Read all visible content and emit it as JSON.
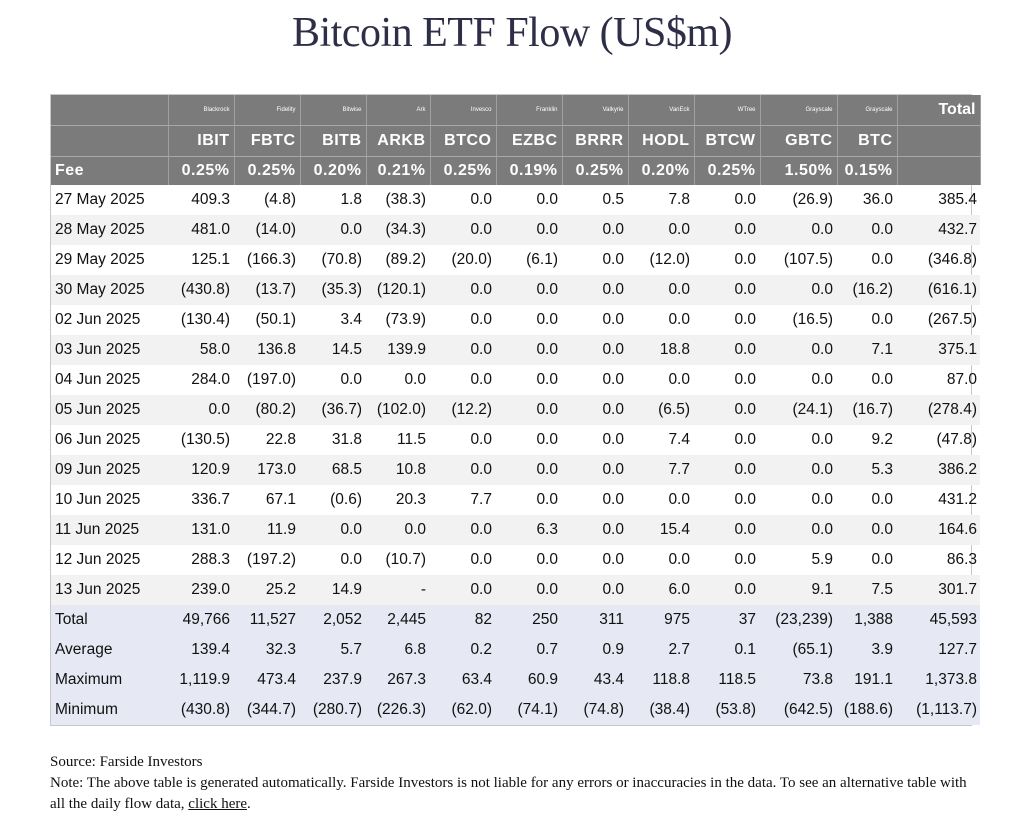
{
  "title": "Bitcoin ETF Flow (US$m)",
  "table": {
    "issuers": [
      "Blackrock",
      "Fidelity",
      "Bitwise",
      "Ark",
      "Invesco",
      "Franklin",
      "Valkyrie",
      "VanEck",
      "WTree",
      "Grayscale",
      "Grayscale"
    ],
    "total_header": "Total",
    "tickers": [
      "IBIT",
      "FBTC",
      "BITB",
      "ARKB",
      "BTCO",
      "EZBC",
      "BRRR",
      "HODL",
      "BTCW",
      "GBTC",
      "BTC"
    ],
    "fee_label": "Fee",
    "fees": [
      "0.25%",
      "0.25%",
      "0.20%",
      "0.21%",
      "0.25%",
      "0.19%",
      "0.25%",
      "0.20%",
      "0.25%",
      "1.50%",
      "0.15%"
    ],
    "rows": [
      {
        "date": "27 May 2025",
        "values": [
          "409.3",
          "(4.8)",
          "1.8",
          "(38.3)",
          "0.0",
          "0.0",
          "0.5",
          "7.8",
          "0.0",
          "(26.9)",
          "36.0"
        ],
        "total": "385.4"
      },
      {
        "date": "28 May 2025",
        "values": [
          "481.0",
          "(14.0)",
          "0.0",
          "(34.3)",
          "0.0",
          "0.0",
          "0.0",
          "0.0",
          "0.0",
          "0.0",
          "0.0"
        ],
        "total": "432.7"
      },
      {
        "date": "29 May 2025",
        "values": [
          "125.1",
          "(166.3)",
          "(70.8)",
          "(89.2)",
          "(20.0)",
          "(6.1)",
          "0.0",
          "(12.0)",
          "0.0",
          "(107.5)",
          "0.0"
        ],
        "total": "(346.8)"
      },
      {
        "date": "30 May 2025",
        "values": [
          "(430.8)",
          "(13.7)",
          "(35.3)",
          "(120.1)",
          "0.0",
          "0.0",
          "0.0",
          "0.0",
          "0.0",
          "0.0",
          "(16.2)"
        ],
        "total": "(616.1)"
      },
      {
        "date": "02 Jun 2025",
        "values": [
          "(130.4)",
          "(50.1)",
          "3.4",
          "(73.9)",
          "0.0",
          "0.0",
          "0.0",
          "0.0",
          "0.0",
          "(16.5)",
          "0.0"
        ],
        "total": "(267.5)"
      },
      {
        "date": "03 Jun 2025",
        "values": [
          "58.0",
          "136.8",
          "14.5",
          "139.9",
          "0.0",
          "0.0",
          "0.0",
          "18.8",
          "0.0",
          "0.0",
          "7.1"
        ],
        "total": "375.1"
      },
      {
        "date": "04 Jun 2025",
        "values": [
          "284.0",
          "(197.0)",
          "0.0",
          "0.0",
          "0.0",
          "0.0",
          "0.0",
          "0.0",
          "0.0",
          "0.0",
          "0.0"
        ],
        "total": "87.0"
      },
      {
        "date": "05 Jun 2025",
        "values": [
          "0.0",
          "(80.2)",
          "(36.7)",
          "(102.0)",
          "(12.2)",
          "0.0",
          "0.0",
          "(6.5)",
          "0.0",
          "(24.1)",
          "(16.7)"
        ],
        "total": "(278.4)"
      },
      {
        "date": "06 Jun 2025",
        "values": [
          "(130.5)",
          "22.8",
          "31.8",
          "11.5",
          "0.0",
          "0.0",
          "0.0",
          "7.4",
          "0.0",
          "0.0",
          "9.2"
        ],
        "total": "(47.8)"
      },
      {
        "date": "09 Jun 2025",
        "values": [
          "120.9",
          "173.0",
          "68.5",
          "10.8",
          "0.0",
          "0.0",
          "0.0",
          "7.7",
          "0.0",
          "0.0",
          "5.3"
        ],
        "total": "386.2"
      },
      {
        "date": "10 Jun 2025",
        "values": [
          "336.7",
          "67.1",
          "(0.6)",
          "20.3",
          "7.7",
          "0.0",
          "0.0",
          "0.0",
          "0.0",
          "0.0",
          "0.0"
        ],
        "total": "431.2"
      },
      {
        "date": "11 Jun 2025",
        "values": [
          "131.0",
          "11.9",
          "0.0",
          "0.0",
          "0.0",
          "6.3",
          "0.0",
          "15.4",
          "0.0",
          "0.0",
          "0.0"
        ],
        "total": "164.6"
      },
      {
        "date": "12 Jun 2025",
        "values": [
          "288.3",
          "(197.2)",
          "0.0",
          "(10.7)",
          "0.0",
          "0.0",
          "0.0",
          "0.0",
          "0.0",
          "5.9",
          "0.0"
        ],
        "total": "86.3"
      },
      {
        "date": "13 Jun 2025",
        "values": [
          "239.0",
          "25.2",
          "14.9",
          "-",
          "0.0",
          "0.0",
          "0.0",
          "6.0",
          "0.0",
          "9.1",
          "7.5"
        ],
        "total": "301.7"
      }
    ],
    "summary": [
      {
        "label": "Total",
        "values": [
          "49,766",
          "11,527",
          "2,052",
          "2,445",
          "82",
          "250",
          "311",
          "975",
          "37",
          "(23,239)",
          "1,388"
        ],
        "total": "45,593"
      },
      {
        "label": "Average",
        "values": [
          "139.4",
          "32.3",
          "5.7",
          "6.8",
          "0.2",
          "0.7",
          "0.9",
          "2.7",
          "0.1",
          "(65.1)",
          "3.9"
        ],
        "total": "127.7"
      },
      {
        "label": "Maximum",
        "values": [
          "1,119.9",
          "473.4",
          "237.9",
          "267.3",
          "63.4",
          "60.9",
          "43.4",
          "118.8",
          "118.5",
          "73.8",
          "191.1"
        ],
        "total": "1,373.8"
      },
      {
        "label": "Minimum",
        "values": [
          "(430.8)",
          "(344.7)",
          "(280.7)",
          "(226.3)",
          "(62.0)",
          "(74.1)",
          "(74.8)",
          "(38.4)",
          "(53.8)",
          "(642.5)",
          "(188.6)"
        ],
        "total": "(1,113.7)"
      }
    ]
  },
  "footer": {
    "source": "Source: Farside Investors",
    "note": "Note: The above table is generated automatically. Farside Investors is not liable for any errors or inaccuracies in the data. To see an alternative table with all the daily flow data,",
    "link_text": "click here",
    "end": "."
  },
  "colors": {
    "header_bg": "#7b7b7b",
    "negative": "#e0302d",
    "summary_bg": "#e6e8f3",
    "alt_row_bg": "#f2f2f2",
    "title": "#2e2e48"
  }
}
